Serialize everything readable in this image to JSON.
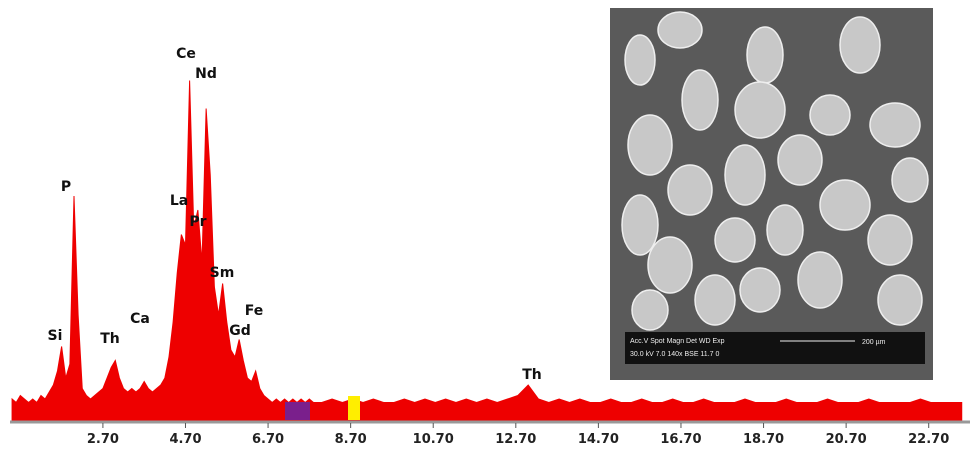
{
  "chart_data": {
    "type": "spectrum",
    "color": "#ee0000",
    "x": [
      0.5,
      0.6,
      0.7,
      0.8,
      0.9,
      1.0,
      1.1,
      1.2,
      1.3,
      1.4,
      1.5,
      1.6,
      1.7,
      1.8,
      1.9,
      2.0,
      2.1,
      2.2,
      2.3,
      2.4,
      2.5,
      2.6,
      2.7,
      2.8,
      2.9,
      3.0,
      3.1,
      3.2,
      3.3,
      3.4,
      3.5,
      3.6,
      3.7,
      3.8,
      3.9,
      4.0,
      4.1,
      4.2,
      4.3,
      4.4,
      4.5,
      4.6,
      4.7,
      4.8,
      4.9,
      5.0,
      5.1,
      5.2,
      5.3,
      5.4,
      5.5,
      5.6,
      5.7,
      5.8,
      5.9,
      6.0,
      6.1,
      6.2,
      6.3,
      6.4,
      6.5,
      6.6,
      6.7,
      6.8,
      6.9,
      7.0,
      7.1,
      7.2,
      7.3,
      7.4,
      7.5,
      7.6,
      7.7,
      7.8,
      7.9,
      8.0,
      8.25,
      8.5,
      8.75,
      9.0,
      9.25,
      9.5,
      9.75,
      10.0,
      10.25,
      10.5,
      10.75,
      11.0,
      11.25,
      11.5,
      11.75,
      12.0,
      12.25,
      12.5,
      12.75,
      13.0,
      13.25,
      13.5,
      13.75,
      14.0,
      14.25,
      14.5,
      14.75,
      15.0,
      15.25,
      15.5,
      15.75,
      16.0,
      16.25,
      16.5,
      16.75,
      17.0,
      17.25,
      17.5,
      17.75,
      18.0,
      18.25,
      18.5,
      18.75,
      19.0,
      19.25,
      19.5,
      19.75,
      20.0,
      20.25,
      20.5,
      20.75,
      21.0,
      21.25,
      21.5,
      21.75,
      22.0,
      22.25,
      22.5,
      22.75,
      23.0,
      23.25,
      23.5
    ],
    "values": [
      6,
      5,
      7,
      6,
      5,
      6,
      5,
      7,
      6,
      8,
      10,
      14,
      21,
      12,
      16,
      64,
      30,
      9,
      7,
      6,
      7,
      8,
      9,
      12,
      15,
      17,
      12,
      9,
      8,
      9,
      8,
      9,
      11,
      9,
      8,
      9,
      10,
      12,
      18,
      28,
      42,
      53,
      50,
      97,
      55,
      60,
      45,
      89,
      70,
      38,
      30,
      39,
      28,
      20,
      18,
      23,
      17,
      12,
      11,
      14,
      9,
      7,
      6,
      5,
      6,
      5,
      6,
      5,
      6,
      5,
      6,
      5,
      6,
      5,
      5,
      5,
      6,
      5,
      6,
      5,
      6,
      5,
      5,
      6,
      5,
      6,
      5,
      6,
      5,
      6,
      5,
      6,
      5,
      6,
      7,
      10,
      6,
      5,
      6,
      5,
      6,
      5,
      5,
      6,
      5,
      5,
      6,
      5,
      5,
      6,
      5,
      5,
      6,
      5,
      5,
      5,
      6,
      5,
      5,
      5,
      6,
      5,
      5,
      5,
      6,
      5,
      5,
      5,
      6,
      5,
      5,
      5,
      5,
      6,
      5,
      5,
      5,
      5
    ],
    "xlim": [
      0.45,
      23.7
    ],
    "ylim": [
      0,
      100
    ],
    "xticks": [
      {
        "value": 2.7,
        "label": "2.70"
      },
      {
        "value": 4.7,
        "label": "4.70"
      },
      {
        "value": 6.7,
        "label": "6.70"
      },
      {
        "value": 8.7,
        "label": "8.70"
      },
      {
        "value": 10.7,
        "label": "10.70"
      },
      {
        "value": 12.7,
        "label": "12.70"
      },
      {
        "value": 14.7,
        "label": "14.70"
      },
      {
        "value": 16.7,
        "label": "16.70"
      },
      {
        "value": 18.7,
        "label": "18.70"
      },
      {
        "value": 20.7,
        "label": "20.70"
      },
      {
        "value": 22.7,
        "label": "22.70"
      }
    ],
    "annotations": [
      "Si",
      "P",
      "Th",
      "Ca",
      "La",
      "Ce",
      "Nd",
      "Pr",
      "Sm",
      "Fe",
      "Gd",
      "Th"
    ]
  },
  "inset": {
    "header": "Acc.V  Spot Magn    Det  WD  Exp",
    "values": "30.0 kV 7.0  140x    BSE 11.7  0",
    "scale": "200 µm"
  }
}
